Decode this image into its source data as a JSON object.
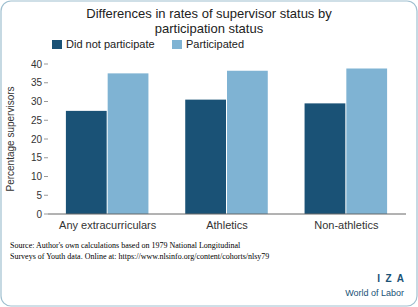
{
  "chart_data": {
    "type": "bar",
    "title": "Differences in rates of supervisor status by\nparticipation status",
    "categories": [
      "Any extracurriculars",
      "Athletics",
      "Non-athletics"
    ],
    "series": [
      {
        "name": "Did not participate",
        "color": "#1a5276",
        "values": [
          27.5,
          30.5,
          29.5
        ]
      },
      {
        "name": "Participated",
        "color": "#7fb3d3",
        "values": [
          37.5,
          38.2,
          38.8
        ]
      }
    ],
    "ylabel": "Percentage supervisors",
    "ylim": [
      0,
      40
    ],
    "yticks": [
      0,
      5,
      10,
      15,
      20,
      25,
      30,
      35,
      40
    ],
    "grid": false,
    "legend": "upper left",
    "annotations": [
      "Source: Author's own calculations based on 1979 National Longitudinal\nSurveys of Youth data. Online at: https://www.nlsinfo.org/content/cohorts/nlsy79",
      "I  Z  A",
      "World of Labor"
    ]
  }
}
